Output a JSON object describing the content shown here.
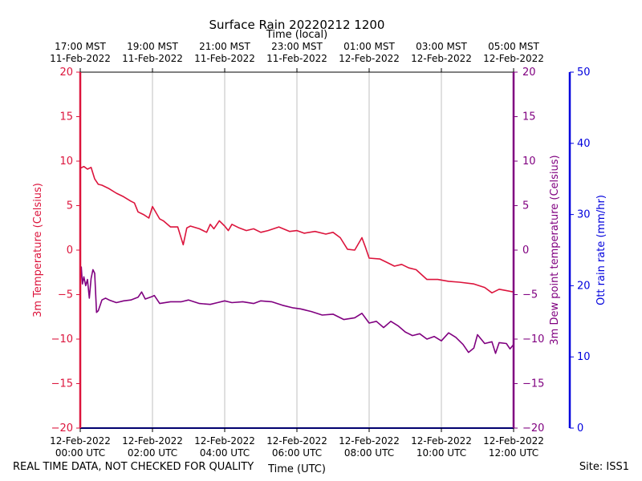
{
  "title": "Surface Rain 20220212 1200",
  "footer": {
    "quality_note": "REAL TIME DATA, NOT CHECKED FOR QUALITY",
    "site": "Site: ISS1"
  },
  "chart_data": {
    "type": "line",
    "title": "Surface Rain 20220212 1200",
    "xlabel": "Time (UTC)",
    "x2label": "Time (local)",
    "ylabel_left": "3m Temperature (Celsius)",
    "ylabel_inner_right": "3m Dew point temperature (Celsius)",
    "ylabel_outer_right": "Ott rain rate (mm/hr)",
    "xlim_hours_utc": [
      0,
      12
    ],
    "ylim_temperature": [
      -20,
      20
    ],
    "ylim_rain": [
      0,
      50
    ],
    "grid": "vertical-only",
    "x_ticks_hours": [
      0,
      2,
      4,
      6,
      8,
      10,
      12
    ],
    "x_tick_labels_utc": [
      [
        "12-Feb-2022",
        "00:00 UTC"
      ],
      [
        "12-Feb-2022",
        "02:00 UTC"
      ],
      [
        "12-Feb-2022",
        "04:00 UTC"
      ],
      [
        "12-Feb-2022",
        "06:00 UTC"
      ],
      [
        "12-Feb-2022",
        "08:00 UTC"
      ],
      [
        "12-Feb-2022",
        "10:00 UTC"
      ],
      [
        "12-Feb-2022",
        "12:00 UTC"
      ]
    ],
    "x_tick_labels_local": [
      [
        "17:00 MST",
        "11-Feb-2022"
      ],
      [
        "19:00 MST",
        "11-Feb-2022"
      ],
      [
        "21:00 MST",
        "11-Feb-2022"
      ],
      [
        "23:00 MST",
        "11-Feb-2022"
      ],
      [
        "01:00 MST",
        "12-Feb-2022"
      ],
      [
        "03:00 MST",
        "12-Feb-2022"
      ],
      [
        "05:00 MST",
        "12-Feb-2022"
      ]
    ],
    "y_ticks_temperature": [
      20,
      15,
      10,
      5,
      0,
      -5,
      -10,
      -15,
      -20
    ],
    "y_tick_labels_temperature": [
      "20",
      "15",
      "10",
      "5",
      "0",
      "−5",
      "−10",
      "−15",
      "−20"
    ],
    "y_ticks_rain": [
      0,
      10,
      20,
      30,
      40,
      50
    ],
    "y_tick_labels_rain": [
      "0",
      "10",
      "20",
      "30",
      "40",
      "50"
    ],
    "colors": {
      "temperature": "#dc143c",
      "dewpoint": "#800080",
      "rain": "#0000dd",
      "grid": "#b0b0b0"
    },
    "series": [
      {
        "key": "temperature",
        "axis": "temperature",
        "x": [
          0,
          0.1,
          0.2,
          0.3,
          0.4,
          0.5,
          0.6,
          0.8,
          1.0,
          1.2,
          1.4,
          1.5,
          1.6,
          1.75,
          1.9,
          2.0,
          2.1,
          2.2,
          2.3,
          2.5,
          2.7,
          2.85,
          2.95,
          3.05,
          3.3,
          3.5,
          3.6,
          3.7,
          3.85,
          4.0,
          4.1,
          4.2,
          4.4,
          4.6,
          4.8,
          5.0,
          5.2,
          5.5,
          5.8,
          6.0,
          6.2,
          6.5,
          6.8,
          7.0,
          7.2,
          7.4,
          7.6,
          7.8,
          7.9,
          8.0,
          8.3,
          8.5,
          8.7,
          8.9,
          9.1,
          9.3,
          9.6,
          9.9,
          10.2,
          10.5,
          10.9,
          11.2,
          11.4,
          11.6,
          12.0
        ],
        "y": [
          9.2,
          9.4,
          9.1,
          9.3,
          8.0,
          7.4,
          7.3,
          6.9,
          6.4,
          6.0,
          5.5,
          5.3,
          4.3,
          4.0,
          3.6,
          4.9,
          4.2,
          3.5,
          3.3,
          2.6,
          2.6,
          0.6,
          2.5,
          2.7,
          2.4,
          2.0,
          2.9,
          2.4,
          3.3,
          2.7,
          2.2,
          2.9,
          2.5,
          2.2,
          2.4,
          2.0,
          2.2,
          2.6,
          2.1,
          2.2,
          1.9,
          2.1,
          1.8,
          2.0,
          1.4,
          0.1,
          0.0,
          1.4,
          0.3,
          -0.9,
          -1.0,
          -1.4,
          -1.8,
          -1.6,
          -2.0,
          -2.2,
          -3.3,
          -3.3,
          -3.5,
          -3.6,
          -3.8,
          -4.2,
          -4.8,
          -4.4,
          -4.7
        ]
      },
      {
        "key": "dewpoint",
        "axis": "temperature",
        "x": [
          0,
          0.03,
          0.06,
          0.1,
          0.15,
          0.2,
          0.25,
          0.3,
          0.35,
          0.4,
          0.45,
          0.5,
          0.55,
          0.6,
          0.7,
          0.8,
          1.0,
          1.2,
          1.4,
          1.6,
          1.7,
          1.8,
          2.0,
          2.05,
          2.2,
          2.5,
          2.8,
          3.0,
          3.3,
          3.6,
          3.8,
          4.0,
          4.2,
          4.5,
          4.8,
          5.0,
          5.3,
          5.6,
          5.9,
          6.1,
          6.4,
          6.7,
          7.0,
          7.3,
          7.6,
          7.8,
          8.0,
          8.2,
          8.4,
          8.6,
          8.8,
          9.0,
          9.2,
          9.4,
          9.6,
          9.8,
          10.0,
          10.2,
          10.4,
          10.6,
          10.75,
          10.9,
          11.0,
          11.2,
          11.4,
          11.5,
          11.6,
          11.8,
          11.9,
          12.0
        ],
        "y": [
          -3.5,
          -1.9,
          -3.8,
          -3.0,
          -4.0,
          -3.3,
          -5.4,
          -3.2,
          -2.2,
          -2.6,
          -7.0,
          -6.8,
          -6.2,
          -5.6,
          -5.4,
          -5.6,
          -5.9,
          -5.7,
          -5.6,
          -5.3,
          -4.7,
          -5.5,
          -5.2,
          -5.1,
          -6.0,
          -5.8,
          -5.8,
          -5.6,
          -6.0,
          -6.1,
          -5.9,
          -5.7,
          -5.9,
          -5.8,
          -6.0,
          -5.7,
          -5.8,
          -6.2,
          -6.5,
          -6.6,
          -6.9,
          -7.3,
          -7.2,
          -7.8,
          -7.6,
          -7.1,
          -8.2,
          -8.0,
          -8.7,
          -8.0,
          -8.5,
          -9.2,
          -9.6,
          -9.4,
          -10.0,
          -9.7,
          -10.2,
          -9.3,
          -9.8,
          -10.6,
          -11.5,
          -11.0,
          -9.5,
          -10.5,
          -10.3,
          -11.6,
          -10.4,
          -10.5,
          -11.1,
          -10.6
        ]
      },
      {
        "key": "rain",
        "axis": "rain",
        "x": [
          0,
          12
        ],
        "y": [
          0,
          0
        ]
      }
    ]
  }
}
